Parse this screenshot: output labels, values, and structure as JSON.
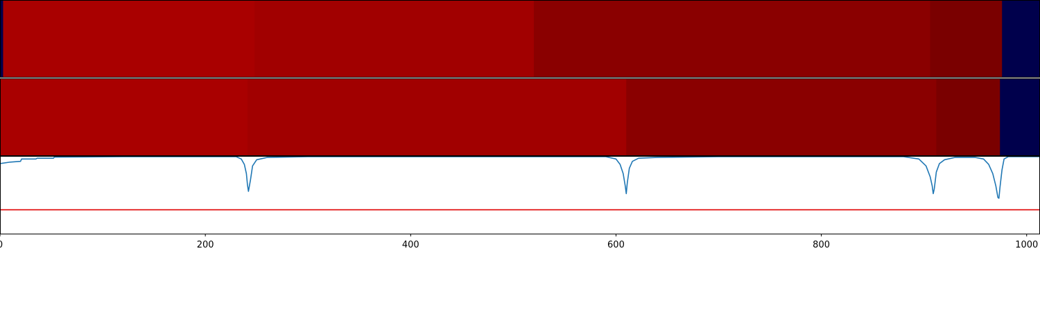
{
  "chart_data": [
    {
      "type": "heatmap",
      "panel": "top",
      "xlim": [
        0,
        1013
      ],
      "segments": [
        {
          "start": 0,
          "end": 3,
          "color": "#00004c"
        },
        {
          "start": 3,
          "end": 248,
          "color": "#a90000"
        },
        {
          "start": 248,
          "end": 520,
          "color": "#a10000"
        },
        {
          "start": 520,
          "end": 906,
          "color": "#8a0000"
        },
        {
          "start": 906,
          "end": 976,
          "color": "#7a0000"
        },
        {
          "start": 976,
          "end": 1013,
          "color": "#00004c"
        }
      ]
    },
    {
      "type": "heatmap",
      "panel": "middle",
      "xlim": [
        0,
        1013
      ],
      "segments": [
        {
          "start": 0,
          "end": 241,
          "color": "#a90000"
        },
        {
          "start": 241,
          "end": 610,
          "color": "#a10000"
        },
        {
          "start": 610,
          "end": 912,
          "color": "#8a0000"
        },
        {
          "start": 912,
          "end": 974,
          "color": "#7a0000"
        },
        {
          "start": 974,
          "end": 1013,
          "color": "#00004c"
        }
      ]
    },
    {
      "type": "line",
      "panel": "bottom",
      "xlim": [
        0,
        1013
      ],
      "ylim": [
        0,
        1
      ],
      "xticks": [
        0,
        200,
        400,
        600,
        800,
        1000
      ],
      "threshold": {
        "value": 0.31,
        "color": "#e00000"
      },
      "series": [
        {
          "color": "#1f77b4",
          "x": [
            0,
            10,
            20,
            21,
            35,
            36,
            52,
            53,
            120,
            230,
            235,
            238,
            240,
            241,
            242,
            244,
            246,
            250,
            260,
            300,
            590,
            600,
            604,
            607,
            609,
            610,
            611,
            613,
            616,
            622,
            640,
            700,
            880,
            895,
            902,
            906,
            908,
            909,
            910,
            912,
            915,
            920,
            930,
            950,
            958,
            963,
            967,
            970,
            972,
            973,
            974,
            976,
            978,
            982,
            1013
          ],
          "y": [
            0.91,
            0.93,
            0.94,
            0.97,
            0.97,
            0.98,
            0.98,
            0.995,
            1.0,
            1.0,
            0.97,
            0.9,
            0.78,
            0.64,
            0.55,
            0.7,
            0.88,
            0.96,
            0.99,
            1.0,
            1.0,
            0.97,
            0.9,
            0.78,
            0.62,
            0.52,
            0.66,
            0.85,
            0.94,
            0.98,
            0.99,
            1.0,
            1.0,
            0.97,
            0.88,
            0.74,
            0.62,
            0.52,
            0.58,
            0.8,
            0.91,
            0.96,
            0.99,
            0.99,
            0.97,
            0.9,
            0.78,
            0.62,
            0.47,
            0.46,
            0.6,
            0.83,
            0.97,
            1.0,
            1.0
          ]
        }
      ]
    }
  ]
}
